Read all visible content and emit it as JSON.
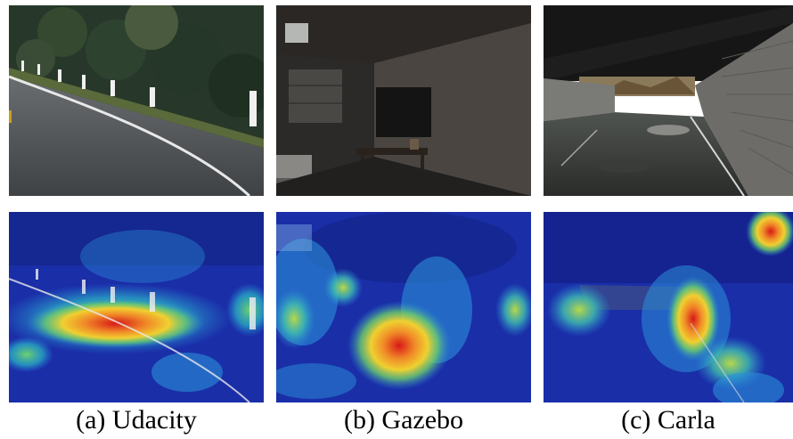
{
  "panels": [
    {
      "caption": "(a) Udacity",
      "photo_subject": "road-scene",
      "heatmap_subject": "road-attention-heatmap"
    },
    {
      "caption": "(b) Gazebo",
      "photo_subject": "indoor-room-scene",
      "heatmap_subject": "room-attention-heatmap"
    },
    {
      "caption": "(c) Carla",
      "photo_subject": "tunnel-road-scene",
      "heatmap_subject": "tunnel-attention-heatmap"
    }
  ],
  "colormap": {
    "low": "#1a2ea8",
    "mid_low": "#2a8fd8",
    "mid": "#6fd06a",
    "mid_high": "#f0d030",
    "high": "#d81818"
  }
}
